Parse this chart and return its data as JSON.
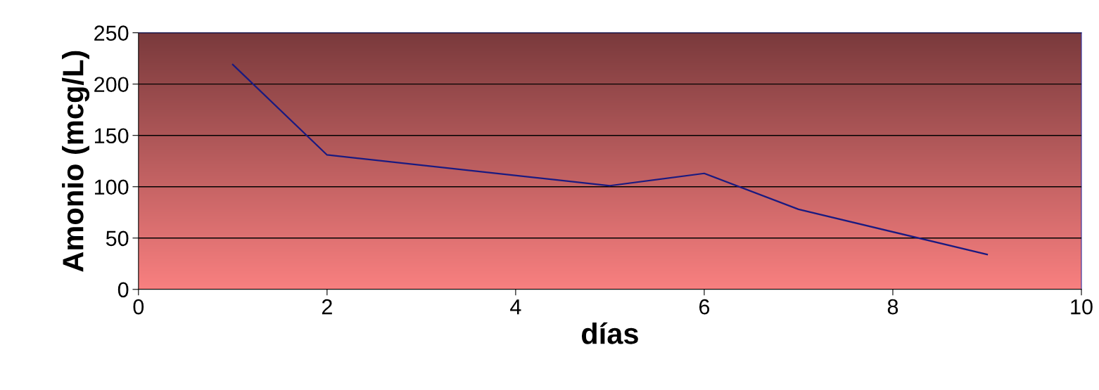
{
  "chart_data": {
    "type": "line",
    "xlabel": "días",
    "ylabel": "Amonio (mcg/L)",
    "x": [
      1,
      2,
      5,
      6,
      7,
      9
    ],
    "series": [
      {
        "color": "#1a1a80",
        "values": [
          219,
          131,
          101,
          113,
          78,
          34
        ]
      }
    ],
    "xlim": [
      0,
      10
    ],
    "xticks": [
      0,
      2,
      4,
      6,
      8,
      10
    ],
    "ylim": [
      0,
      250
    ],
    "yticks": [
      0,
      50,
      100,
      150,
      200,
      250
    ],
    "grid": "y",
    "marker": "none",
    "line_style": "solid"
  }
}
